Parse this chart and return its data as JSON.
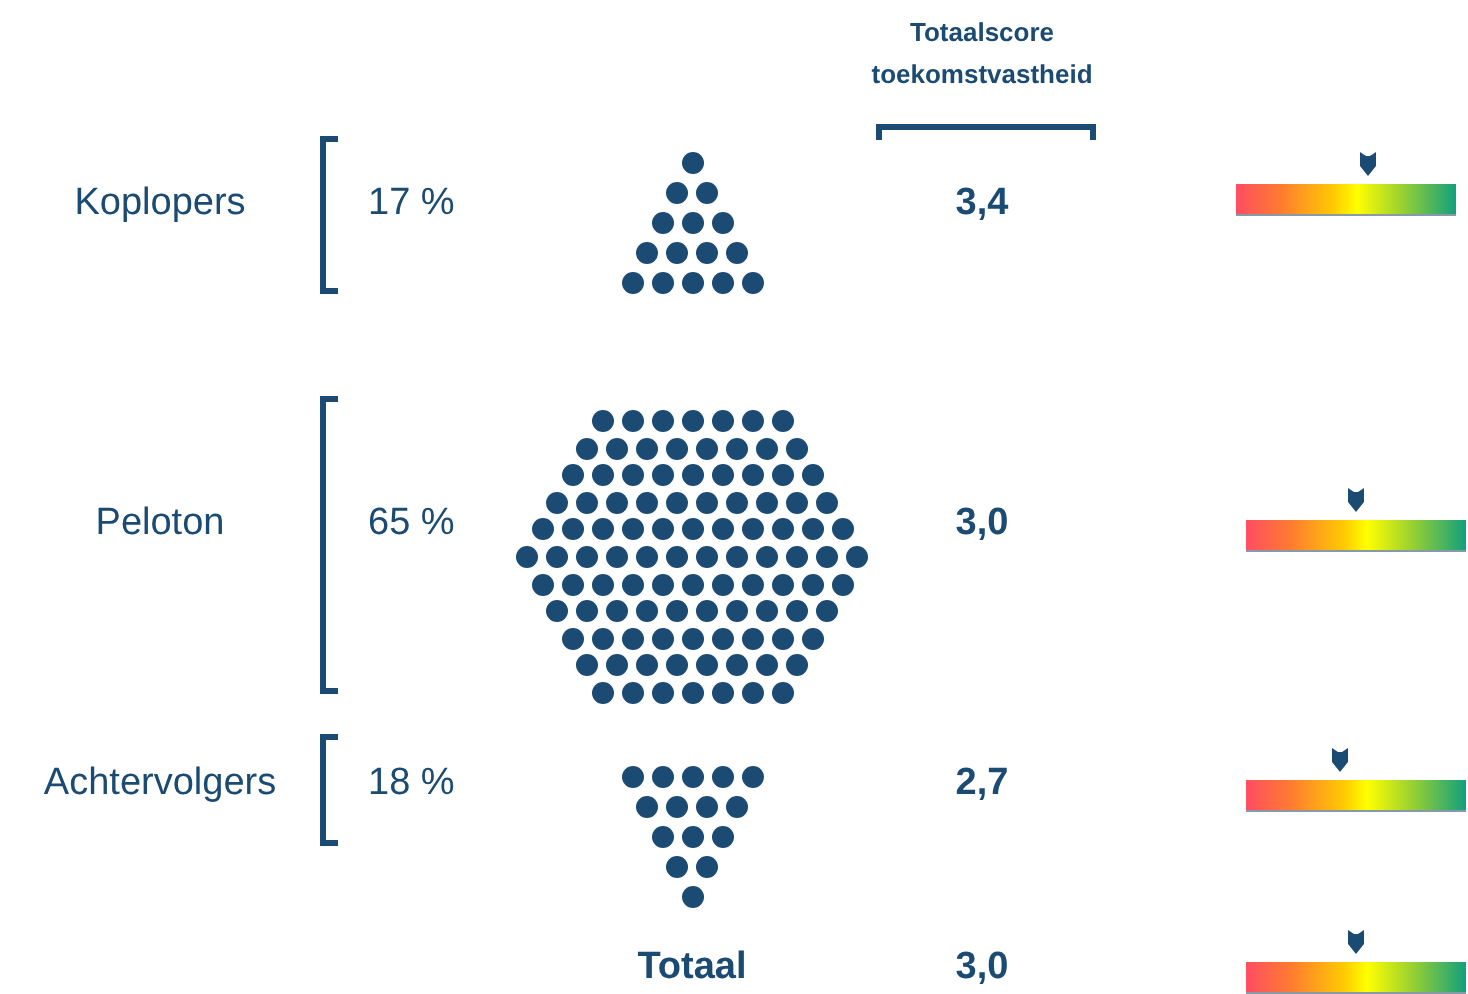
{
  "chart_data": {
    "type": "other",
    "title": "Totaalscore toekomstvastheid",
    "categories": [
      "Koplopers",
      "Peloton",
      "Achtervolgers",
      "Totaal"
    ],
    "series": [
      {
        "values": [
          17,
          65,
          18,
          null
        ],
        "value_labels": [
          "17 %",
          "65 %",
          "18 %",
          null
        ]
      },
      {
        "values": [
          3.4,
          3.0,
          2.7,
          3.0
        ],
        "value_labels": [
          "3,4",
          "3,0",
          "2,7",
          "3,0"
        ]
      }
    ]
  }
}
